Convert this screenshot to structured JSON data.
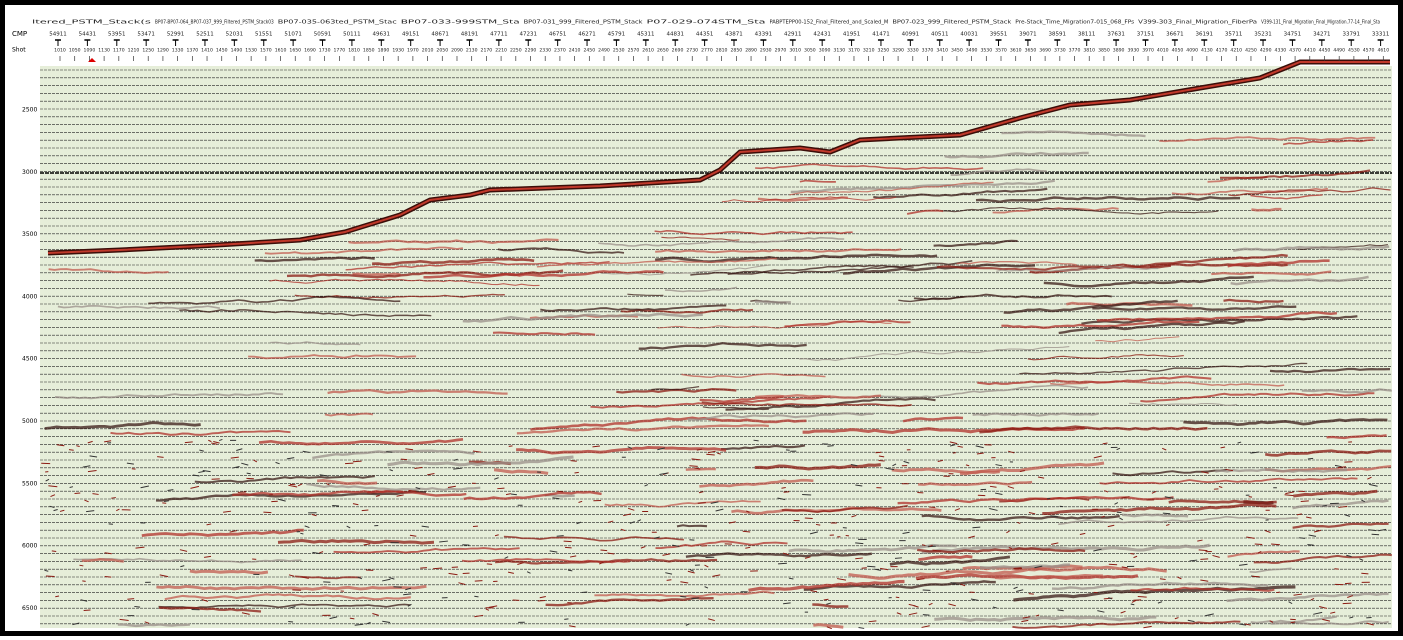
{
  "header": {
    "line_names": [
      "ltered_PSTM_Stack(s",
      "BP07-BP07-064_BP07-037_999_Filtered_PSTM_Stack03",
      "BP07-035-063ted_PSTM_Stac",
      "BP07-033-999STM_Sta",
      "BP07-031_999_Filtered_PSTM_Stack",
      "P07-029-074STM_Sta",
      "PABPTEPP00-152_Final_Filtered_and_Scaled_M",
      "BP07-023_999_Filtered_PSTM_Stack",
      "Pre-Stack_Time_Migration7-015_068_FPs",
      "V399-303_Final_Migration_FiberPa",
      "V399-131_Final_Migration_Final_Migration.77-14_Final_Sta"
    ],
    "cmp_label": "CMP",
    "cmp_values": [
      54911,
      54431,
      53951,
      53471,
      52991,
      52511,
      52031,
      51551,
      51071,
      50591,
      50111,
      49631,
      49151,
      48671,
      48191,
      47711,
      47231,
      46751,
      46271,
      45791,
      45311,
      44831,
      44351,
      43871,
      43391,
      42911,
      42431,
      41951,
      41471,
      40991,
      40511,
      40031,
      39551,
      39071,
      38591,
      38111,
      37631,
      37151,
      36671,
      36191,
      35711,
      35231,
      34751,
      34271,
      33791,
      33311
    ],
    "shot_label": "Shot",
    "shot_values": [
      1010,
      1050,
      1090,
      1130,
      1170,
      1210,
      1250,
      1290,
      1330,
      1370,
      1410,
      1450,
      1490,
      1530,
      1570,
      1610,
      1650,
      1690,
      1730,
      1770,
      1810,
      1850,
      1890,
      1930,
      1970,
      2010,
      2050,
      2090,
      2130,
      2170,
      2210,
      2250,
      2290,
      2330,
      2370,
      2410,
      2450,
      2490,
      2530,
      2570,
      2610,
      2650,
      2690,
      2730,
      2770,
      2810,
      2850,
      2890,
      2930,
      2970,
      3010,
      3050,
      3090,
      3130,
      3170,
      3210,
      3250,
      3290,
      3330,
      3370,
      3410,
      3450,
      3490,
      3530,
      3570,
      3610,
      3650,
      3690,
      3730,
      3770,
      3810,
      3850,
      3890,
      3930,
      3970,
      4010,
      4050,
      4090,
      4130,
      4170,
      4210,
      4250,
      4290,
      4330,
      4370,
      4410,
      4450,
      4490,
      4530,
      4570,
      4610
    ]
  },
  "depth_axis": {
    "labels": [
      2500,
      3000,
      3500,
      4000,
      4500,
      5000,
      5500,
      6000,
      6500
    ]
  }
}
